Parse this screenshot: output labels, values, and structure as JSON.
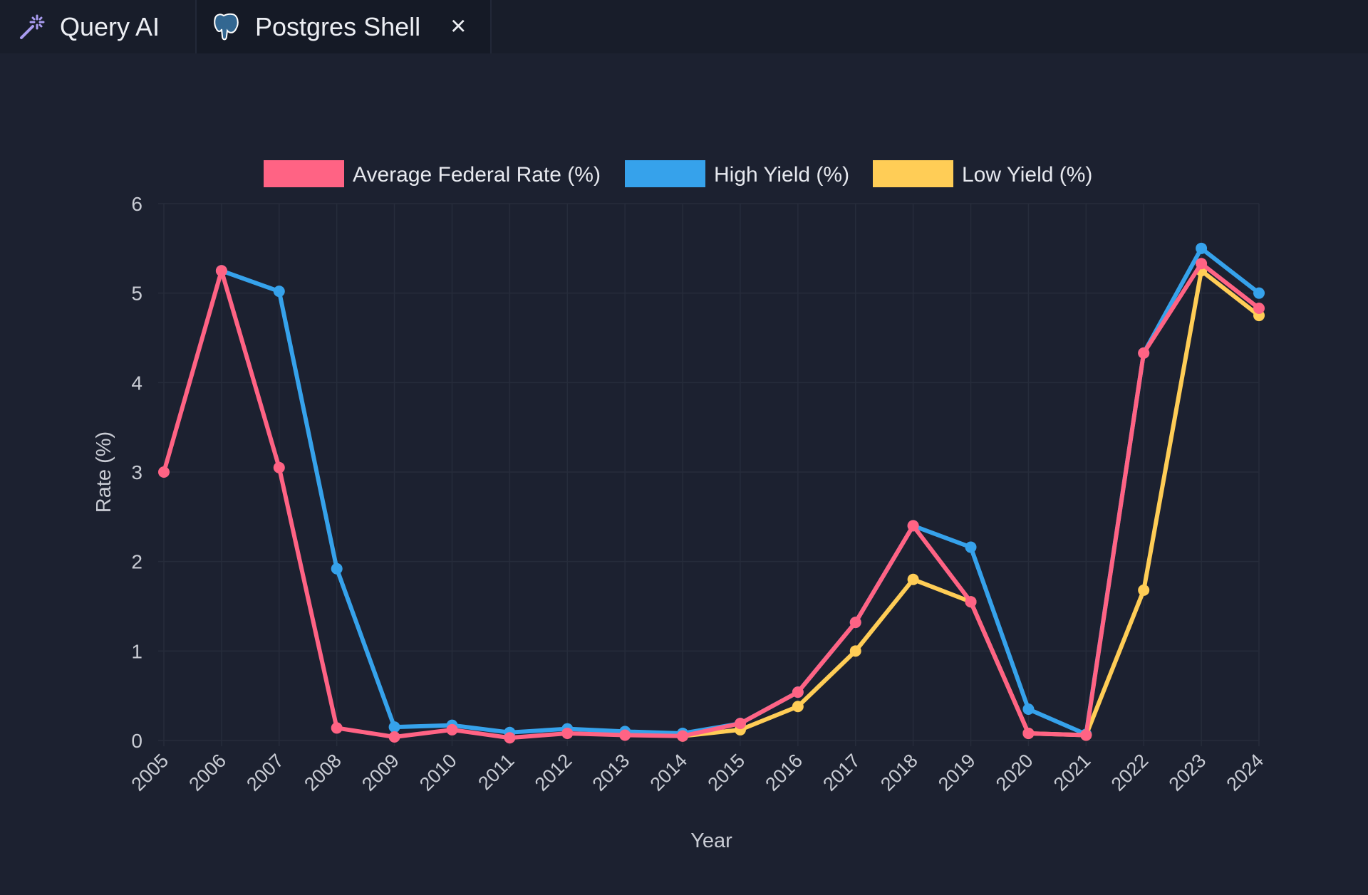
{
  "tabs": [
    {
      "label": "Query AI",
      "icon": "magic-wand-icon",
      "icon_color": "#a99cf0"
    },
    {
      "label": "Postgres Shell",
      "icon": "postgres-elephant-icon",
      "icon_color": "#336791",
      "close_icon": "×"
    }
  ],
  "chart_data": {
    "type": "line",
    "title": "",
    "xlabel": "Year",
    "ylabel": "Rate (%)",
    "ylim": [
      0,
      6
    ],
    "yticks": [
      0,
      1,
      2,
      3,
      4,
      5,
      6
    ],
    "grid": true,
    "legend_position": "top",
    "categories": [
      "2005",
      "2006",
      "2007",
      "2008",
      "2009",
      "2010",
      "2011",
      "2012",
      "2013",
      "2014",
      "2015",
      "2016",
      "2017",
      "2018",
      "2019",
      "2020",
      "2021",
      "2022",
      "2023",
      "2024"
    ],
    "series": [
      {
        "name": "Average Federal Rate (%)",
        "color": "#ff6384",
        "values": [
          3.0,
          5.25,
          3.05,
          0.14,
          0.04,
          0.12,
          0.03,
          0.08,
          0.06,
          0.05,
          0.19,
          0.54,
          1.32,
          2.4,
          1.55,
          0.08,
          0.06,
          4.33,
          5.33,
          4.83
        ]
      },
      {
        "name": "High Yield (%)",
        "color": "#36a2eb",
        "values": [
          null,
          5.25,
          5.02,
          1.92,
          0.15,
          0.17,
          0.09,
          0.13,
          0.1,
          0.08,
          0.19,
          0.54,
          1.32,
          2.4,
          2.16,
          0.35,
          0.07,
          4.33,
          5.5,
          5.0
        ]
      },
      {
        "name": "Low Yield (%)",
        "color": "#ffcd56",
        "values": [
          null,
          null,
          null,
          null,
          null,
          null,
          null,
          null,
          null,
          0.05,
          0.12,
          0.38,
          1.0,
          1.8,
          1.55,
          0.08,
          0.06,
          1.68,
          5.25,
          4.75
        ]
      }
    ]
  }
}
